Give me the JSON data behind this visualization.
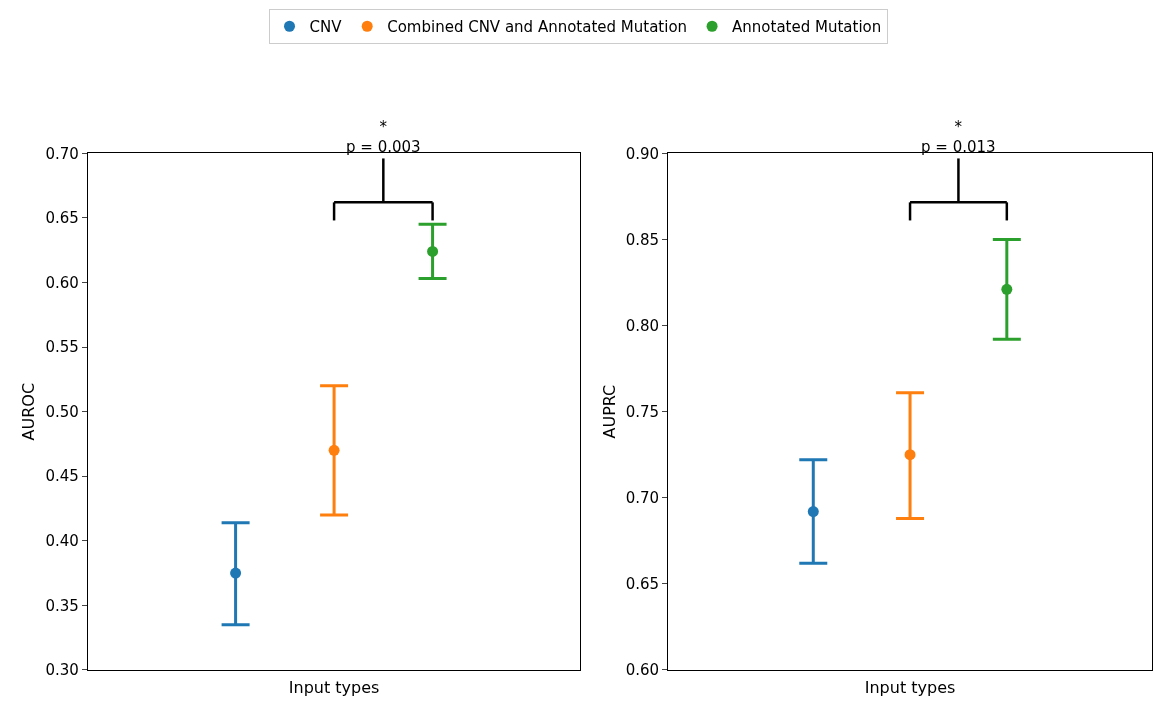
{
  "chart_data": [
    {
      "type": "scatter",
      "xlabel": "Input types",
      "ylabel": "AUROC",
      "categories": [
        null,
        null,
        null
      ],
      "ylim": [
        0.3,
        0.7
      ],
      "yticks": [
        {
          "value": 0.3,
          "label": "0.30"
        },
        0.35,
        {
          "value": 0.4,
          "label": "0.40"
        },
        0.45,
        {
          "value": 0.5,
          "label": "0.50"
        },
        0.55,
        {
          "value": 0.6,
          "label": "0.60"
        },
        0.65,
        {
          "value": 0.7,
          "label": "0.70"
        }
      ],
      "legend": "top",
      "marker": "circle",
      "annotations": [
        "*\np = 0.003"
      ],
      "series": [
        {
          "name": "CNV",
          "color": "#1f77b4",
          "values": [
            0.375,
            null,
            null
          ],
          "errors": [
            [
              0.335,
              0.414
            ],
            null,
            null
          ]
        },
        {
          "name": "Combined CNV and Annotated Mutation",
          "color": "#ff7f0e",
          "values": [
            null,
            0.47,
            null
          ],
          "errors": [
            null,
            [
              0.42,
              0.52
            ],
            null
          ]
        },
        {
          "name": "Annotated Mutation",
          "color": "#2ca02c",
          "values": [
            null,
            null,
            0.624
          ],
          "errors": [
            null,
            null,
            [
              0.603,
              0.645
            ]
          ]
        }
      ]
    },
    {
      "type": "scatter",
      "xlabel": "Input types",
      "ylabel": "AUPRC",
      "categories": [
        null,
        null,
        null
      ],
      "ylim": [
        0.6,
        0.9
      ],
      "yticks": [
        {
          "value": 0.6,
          "label": "0.60"
        },
        0.65,
        {
          "value": 0.7,
          "label": "0.70"
        },
        0.75,
        {
          "value": 0.8,
          "label": "0.80"
        },
        0.85,
        {
          "value": 0.9,
          "label": "0.90"
        }
      ],
      "marker": "circle",
      "annotations": [
        "*\np = 0.013"
      ],
      "series": [
        {
          "color": "#1f77b4",
          "values": [
            0.692,
            null,
            null
          ],
          "errors": [
            [
              0.662,
              0.722
            ],
            null,
            null
          ]
        },
        {
          "color": "#ff7f0e",
          "values": [
            null,
            0.725,
            null
          ],
          "errors": [
            null,
            [
              0.688,
              0.761
            ],
            null
          ]
        },
        {
          "color": "#2ca02c",
          "values": [
            null,
            null,
            0.821
          ],
          "errors": [
            null,
            null,
            [
              0.792,
              0.85
            ]
          ]
        }
      ]
    }
  ]
}
